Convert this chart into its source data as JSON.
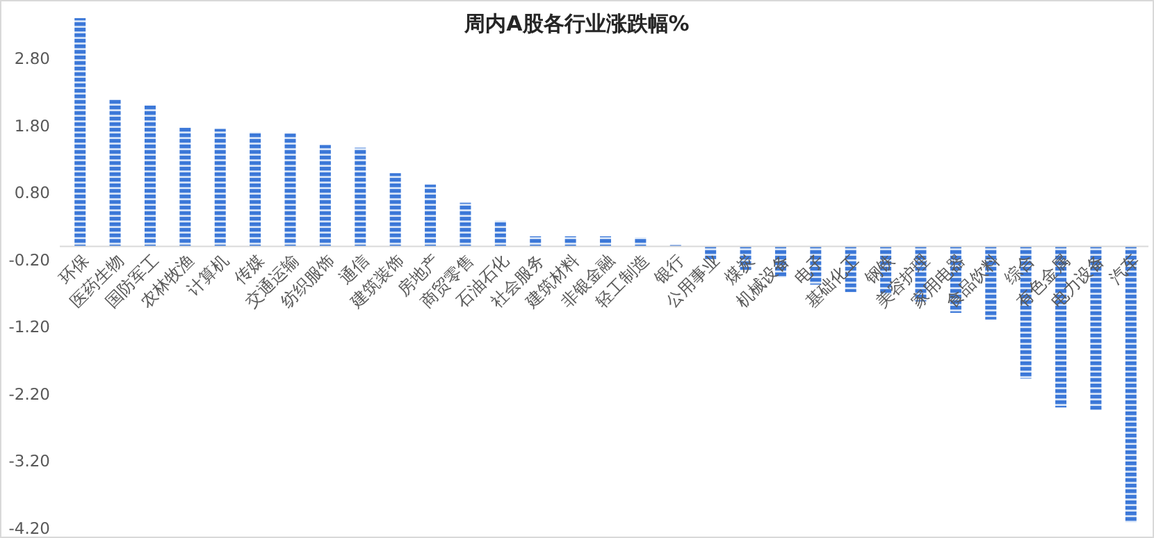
{
  "chart_data": {
    "type": "bar",
    "title": "周内A股各行业涨跌幅%",
    "categories": [
      "环保",
      "医药生物",
      "国防军工",
      "农林牧渔",
      "计算机",
      "传媒",
      "交通运输",
      "纺织服饰",
      "通信",
      "建筑装饰",
      "房地产",
      "商贸零售",
      "石油石化",
      "社会服务",
      "建筑材料",
      "非银金融",
      "轻工制造",
      "银行",
      "公用事业",
      "煤炭",
      "机械设备",
      "电子",
      "基础化工",
      "钢铁",
      "美容护理",
      "家用电器",
      "食品饮料",
      "综合",
      "有色金属",
      "电力设备",
      "汽车"
    ],
    "values": [
      3.4,
      2.19,
      2.1,
      1.77,
      1.75,
      1.7,
      1.68,
      1.51,
      1.47,
      1.09,
      0.92,
      0.65,
      0.38,
      0.15,
      0.15,
      0.15,
      0.13,
      0.02,
      -0.19,
      -0.35,
      -0.46,
      -0.57,
      -0.68,
      -0.72,
      -0.82,
      -0.99,
      -1.09,
      -1.97,
      -2.4,
      -2.44,
      -4.11
    ],
    "color": "#3c78d8",
    "ylim": [
      -4.2,
      3.6
    ],
    "yticks": [
      {
        "value": 2.8,
        "label": "2.80"
      },
      {
        "value": 1.8,
        "label": "1.80"
      },
      {
        "value": 0.8,
        "label": "0.80"
      },
      {
        "value": -0.2,
        "label": "-0.20"
      },
      {
        "value": -1.2,
        "label": "-1.20"
      },
      {
        "value": -2.2,
        "label": "-2.20"
      },
      {
        "value": -3.2,
        "label": "-3.20"
      },
      {
        "value": -4.2,
        "label": "-4.20"
      }
    ],
    "grid": false
  }
}
